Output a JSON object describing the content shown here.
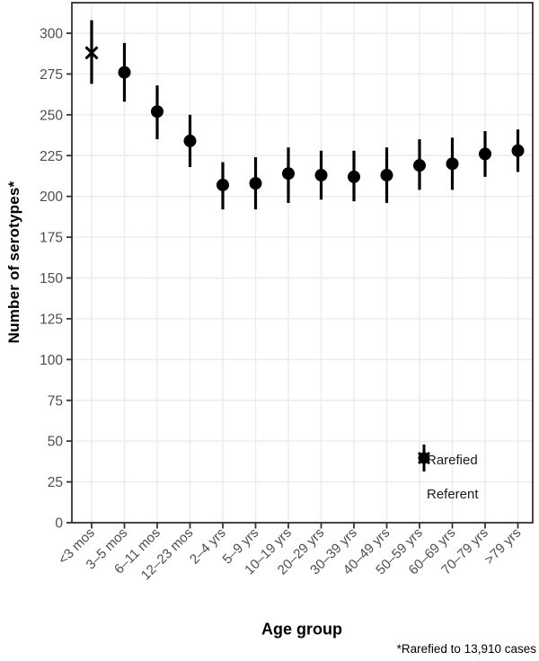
{
  "colors": {
    "marker": "#000000",
    "axis_text": "#4d4d4d",
    "grid": "#ebebeb",
    "panel_border": "#333333"
  },
  "chart_data": {
    "type": "pointrange",
    "title": "",
    "xlabel": "Age group",
    "ylabel": "Number of serotypes*",
    "footnote": "*Rarefied to 13,910 cases",
    "ylim": [
      0,
      318
    ],
    "yticks": [
      0,
      25,
      50,
      75,
      100,
      125,
      150,
      175,
      200,
      225,
      250,
      275,
      300
    ],
    "grid": true,
    "categories": [
      "<3 mos",
      "3–5 mos",
      "6–11 mos",
      "12–23 mos",
      "2–4 yrs",
      "5–9 yrs",
      "10–19 yrs",
      "20–29 yrs",
      "30–39 yrs",
      "40–49 yrs",
      "50–59 yrs",
      "60–69 yrs",
      "70–79 yrs",
      ">79 yrs"
    ],
    "series": [
      {
        "name": "Referent",
        "marker": "x",
        "points": [
          {
            "category": "<3 mos",
            "est": 288,
            "lo": 269,
            "hi": 308
          }
        ]
      },
      {
        "name": "Rarefied",
        "marker": "circle",
        "points": [
          {
            "category": "3–5 mos",
            "est": 276,
            "lo": 258,
            "hi": 294
          },
          {
            "category": "6–11 mos",
            "est": 252,
            "lo": 235,
            "hi": 268
          },
          {
            "category": "12–23 mos",
            "est": 234,
            "lo": 218,
            "hi": 250
          },
          {
            "category": "2–4 yrs",
            "est": 207,
            "lo": 192,
            "hi": 221
          },
          {
            "category": "5–9 yrs",
            "est": 208,
            "lo": 192,
            "hi": 224
          },
          {
            "category": "10–19 yrs",
            "est": 214,
            "lo": 196,
            "hi": 230
          },
          {
            "category": "20–29 yrs",
            "est": 213,
            "lo": 198,
            "hi": 228
          },
          {
            "category": "30–39 yrs",
            "est": 212,
            "lo": 197,
            "hi": 228
          },
          {
            "category": "40–49 yrs",
            "est": 213,
            "lo": 196,
            "hi": 230
          },
          {
            "category": "50–59 yrs",
            "est": 219,
            "lo": 204,
            "hi": 235
          },
          {
            "category": "60–69 yrs",
            "est": 220,
            "lo": 204,
            "hi": 236
          },
          {
            "category": "70–79 yrs",
            "est": 226,
            "lo": 212,
            "hi": 240
          },
          {
            "category": ">79 yrs",
            "est": 228,
            "lo": 215,
            "hi": 241
          }
        ]
      }
    ],
    "legend": {
      "position": "inside bottom-right",
      "entries": [
        {
          "label": "Rarefied",
          "marker": "circle"
        },
        {
          "label": "Referent",
          "marker": "x"
        }
      ]
    }
  }
}
